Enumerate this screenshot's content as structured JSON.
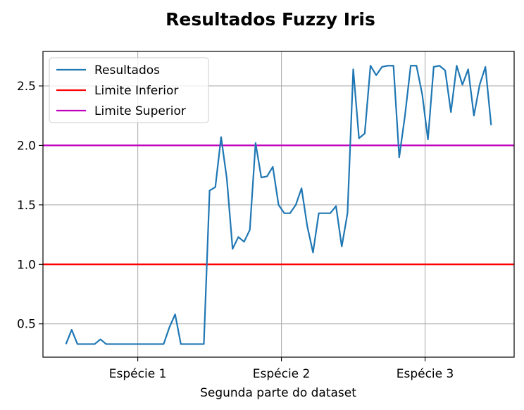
{
  "chart_data": {
    "type": "line",
    "title": "Resultados Fuzzy Iris",
    "xlabel": "Segunda parte do dataset",
    "ylabel": "",
    "xlim": [
      -4,
      78
    ],
    "ylim": [
      0.22,
      2.79
    ],
    "grid": true,
    "legend_position": "upper-left",
    "x_ticks": [
      {
        "value": 12.5,
        "label": "Espécie 1"
      },
      {
        "value": 37.5,
        "label": "Espécie 2"
      },
      {
        "value": 62.5,
        "label": "Espécie 3"
      }
    ],
    "y_ticks": [
      {
        "value": 0.5,
        "label": "0.5"
      },
      {
        "value": 1.0,
        "label": "1.0"
      },
      {
        "value": 1.5,
        "label": "1.5"
      },
      {
        "value": 2.0,
        "label": "2.0"
      },
      {
        "value": 2.5,
        "label": "2.5"
      }
    ],
    "series": [
      {
        "name": "Resultados",
        "color": "#1f77b4",
        "values": [
          0.33,
          0.45,
          0.33,
          0.33,
          0.33,
          0.33,
          0.37,
          0.33,
          0.33,
          0.33,
          0.33,
          0.33,
          0.33,
          0.33,
          0.33,
          0.33,
          0.33,
          0.33,
          0.47,
          0.58,
          0.33,
          0.33,
          0.33,
          0.33,
          0.33,
          1.62,
          1.65,
          2.07,
          1.72,
          1.13,
          1.23,
          1.19,
          1.29,
          2.02,
          1.73,
          1.74,
          1.82,
          1.5,
          1.43,
          1.43,
          1.5,
          1.64,
          1.32,
          1.1,
          1.43,
          1.43,
          1.43,
          1.49,
          1.15,
          1.43,
          2.64,
          2.06,
          2.1,
          2.67,
          2.59,
          2.66,
          2.67,
          2.67,
          1.9,
          2.25,
          2.67,
          2.67,
          2.43,
          2.05,
          2.66,
          2.67,
          2.63,
          2.28,
          2.67,
          2.51,
          2.64,
          2.25,
          2.51,
          2.66,
          2.17
        ]
      }
    ],
    "reference_lines": [
      {
        "name": "Limite Inferior",
        "y": 1.0,
        "color": "#ff0000"
      },
      {
        "name": "Limite Superior",
        "y": 2.0,
        "color": "#bf00bf"
      }
    ]
  }
}
